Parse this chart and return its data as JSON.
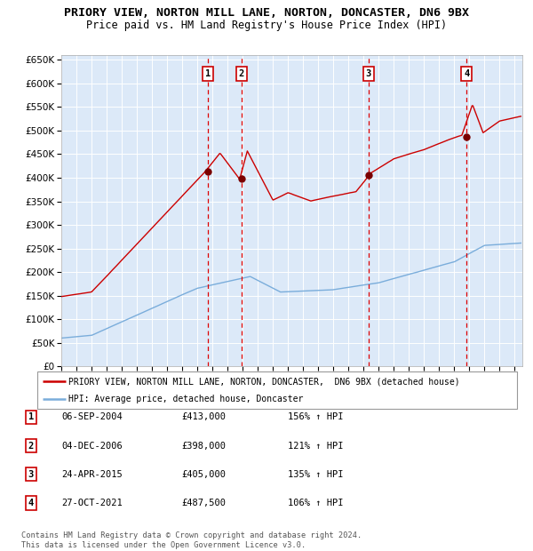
{
  "title": "PRIORY VIEW, NORTON MILL LANE, NORTON, DONCASTER, DN6 9BX",
  "subtitle": "Price paid vs. HM Land Registry's House Price Index (HPI)",
  "ylim": [
    0,
    660000
  ],
  "yticks": [
    0,
    50000,
    100000,
    150000,
    200000,
    250000,
    300000,
    350000,
    400000,
    450000,
    500000,
    550000,
    600000,
    650000
  ],
  "ytick_labels": [
    "£0",
    "£50K",
    "£100K",
    "£150K",
    "£200K",
    "£250K",
    "£300K",
    "£350K",
    "£400K",
    "£450K",
    "£500K",
    "£550K",
    "£600K",
    "£650K"
  ],
  "plot_bg_color": "#dce9f8",
  "grid_color": "#ffffff",
  "red_line_color": "#cc0000",
  "blue_line_color": "#7aaddb",
  "sale_marker_color": "#7a0000",
  "dashed_line_color": "#dd0000",
  "sale_points": [
    {
      "label": "1",
      "date_x": 2004.68,
      "price": 413000
    },
    {
      "label": "2",
      "date_x": 2006.92,
      "price": 398000
    },
    {
      "label": "3",
      "date_x": 2015.31,
      "price": 405000
    },
    {
      "label": "4",
      "date_x": 2021.82,
      "price": 487500
    }
  ],
  "legend_red": "PRIORY VIEW, NORTON MILL LANE, NORTON, DONCASTER,  DN6 9BX (detached house)",
  "legend_blue": "HPI: Average price, detached house, Doncaster",
  "table_rows": [
    [
      "1",
      "06-SEP-2004",
      "£413,000",
      "156% ↑ HPI"
    ],
    [
      "2",
      "04-DEC-2006",
      "£398,000",
      "121% ↑ HPI"
    ],
    [
      "3",
      "24-APR-2015",
      "£405,000",
      "135% ↑ HPI"
    ],
    [
      "4",
      "27-OCT-2021",
      "£487,500",
      "106% ↑ HPI"
    ]
  ],
  "footnote": "Contains HM Land Registry data © Crown copyright and database right 2024.\nThis data is licensed under the Open Government Licence v3.0.",
  "title_fontsize": 9.5,
  "subtitle_fontsize": 8.5,
  "xlim_start": 1995,
  "xlim_end": 2025.5
}
